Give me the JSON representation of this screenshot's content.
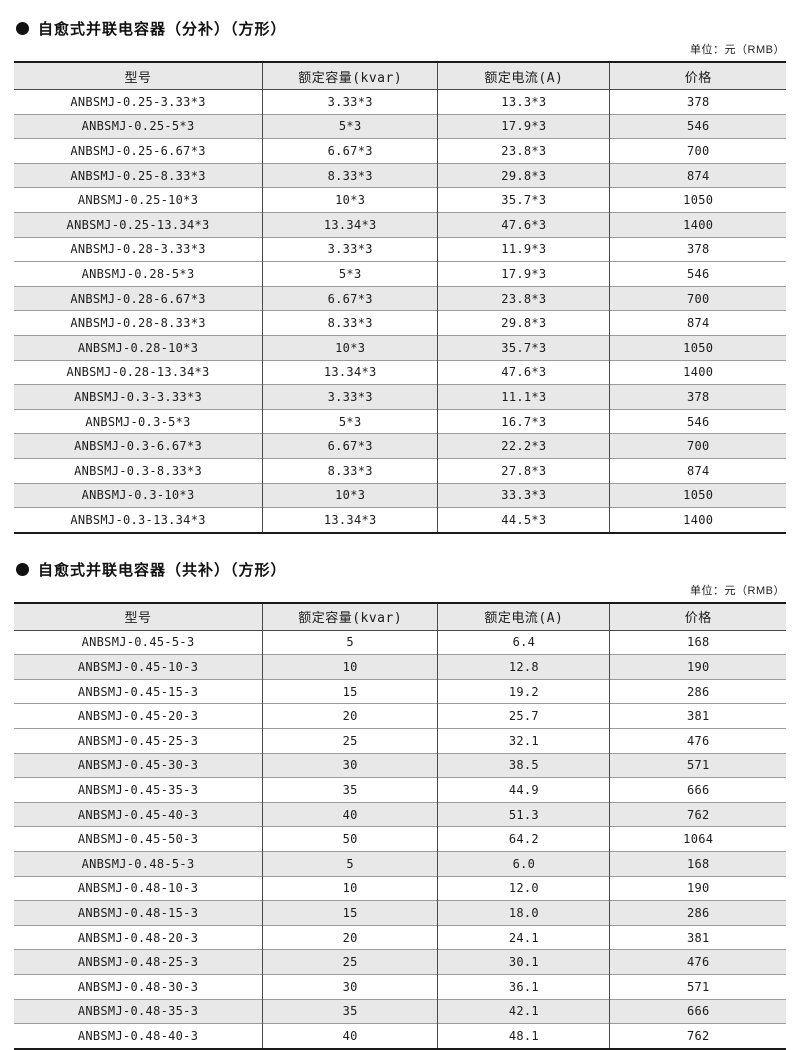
{
  "icons": {
    "bullet": "filled-circle"
  },
  "tables": [
    {
      "title": "自愈式并联电容器（分补）（方形）",
      "unit": "单位：元（RMB）",
      "columns": [
        "型号",
        "额定容量(kvar)",
        "额定电流(A)",
        "价格"
      ],
      "rows": [
        {
          "model": "ANBSMJ-0.25-3.33*3",
          "capacity": "3.33*3",
          "current": "13.3*3",
          "price": "378",
          "shaded": false
        },
        {
          "model": "ANBSMJ-0.25-5*3",
          "capacity": "5*3",
          "current": "17.9*3",
          "price": "546",
          "shaded": true
        },
        {
          "model": "ANBSMJ-0.25-6.67*3",
          "capacity": "6.67*3",
          "current": "23.8*3",
          "price": "700",
          "shaded": false
        },
        {
          "model": "ANBSMJ-0.25-8.33*3",
          "capacity": "8.33*3",
          "current": "29.8*3",
          "price": "874",
          "shaded": true
        },
        {
          "model": "ANBSMJ-0.25-10*3",
          "capacity": "10*3",
          "current": "35.7*3",
          "price": "1050",
          "shaded": false
        },
        {
          "model": "ANBSMJ-0.25-13.34*3",
          "capacity": "13.34*3",
          "current": "47.6*3",
          "price": "1400",
          "shaded": true
        },
        {
          "model": "ANBSMJ-0.28-3.33*3",
          "capacity": "3.33*3",
          "current": "11.9*3",
          "price": "378",
          "shaded": false
        },
        {
          "model": "ANBSMJ-0.28-5*3",
          "capacity": "5*3",
          "current": "17.9*3",
          "price": "546",
          "shaded": false
        },
        {
          "model": "ANBSMJ-0.28-6.67*3",
          "capacity": "6.67*3",
          "current": "23.8*3",
          "price": "700",
          "shaded": true
        },
        {
          "model": "ANBSMJ-0.28-8.33*3",
          "capacity": "8.33*3",
          "current": "29.8*3",
          "price": "874",
          "shaded": false
        },
        {
          "model": "ANBSMJ-0.28-10*3",
          "capacity": "10*3",
          "current": "35.7*3",
          "price": "1050",
          "shaded": true
        },
        {
          "model": "ANBSMJ-0.28-13.34*3",
          "capacity": "13.34*3",
          "current": "47.6*3",
          "price": "1400",
          "shaded": false
        },
        {
          "model": "ANBSMJ-0.3-3.33*3",
          "capacity": "3.33*3",
          "current": "11.1*3",
          "price": "378",
          "shaded": true
        },
        {
          "model": "ANBSMJ-0.3-5*3",
          "capacity": "5*3",
          "current": "16.7*3",
          "price": "546",
          "shaded": false
        },
        {
          "model": "ANBSMJ-0.3-6.67*3",
          "capacity": "6.67*3",
          "current": "22.2*3",
          "price": "700",
          "shaded": true
        },
        {
          "model": "ANBSMJ-0.3-8.33*3",
          "capacity": "8.33*3",
          "current": "27.8*3",
          "price": "874",
          "shaded": false
        },
        {
          "model": "ANBSMJ-0.3-10*3",
          "capacity": "10*3",
          "current": "33.3*3",
          "price": "1050",
          "shaded": true
        },
        {
          "model": "ANBSMJ-0.3-13.34*3",
          "capacity": "13.34*3",
          "current": "44.5*3",
          "price": "1400",
          "shaded": false
        }
      ]
    },
    {
      "title": "自愈式并联电容器（共补）（方形）",
      "unit": "单位：元（RMB）",
      "columns": [
        "型号",
        "额定容量(kvar)",
        "额定电流(A)",
        "价格"
      ],
      "rows": [
        {
          "model": "ANBSMJ-0.45-5-3",
          "capacity": "5",
          "current": "6.4",
          "price": "168",
          "shaded": false
        },
        {
          "model": "ANBSMJ-0.45-10-3",
          "capacity": "10",
          "current": "12.8",
          "price": "190",
          "shaded": true
        },
        {
          "model": "ANBSMJ-0.45-15-3",
          "capacity": "15",
          "current": "19.2",
          "price": "286",
          "shaded": false
        },
        {
          "model": "ANBSMJ-0.45-20-3",
          "capacity": "20",
          "current": "25.7",
          "price": "381",
          "shaded": false
        },
        {
          "model": "ANBSMJ-0.45-25-3",
          "capacity": "25",
          "current": "32.1",
          "price": "476",
          "shaded": false
        },
        {
          "model": "ANBSMJ-0.45-30-3",
          "capacity": "30",
          "current": "38.5",
          "price": "571",
          "shaded": true
        },
        {
          "model": "ANBSMJ-0.45-35-3",
          "capacity": "35",
          "current": "44.9",
          "price": "666",
          "shaded": false
        },
        {
          "model": "ANBSMJ-0.45-40-3",
          "capacity": "40",
          "current": "51.3",
          "price": "762",
          "shaded": true
        },
        {
          "model": "ANBSMJ-0.45-50-3",
          "capacity": "50",
          "current": "64.2",
          "price": "1064",
          "shaded": false
        },
        {
          "model": "ANBSMJ-0.48-5-3",
          "capacity": "5",
          "current": "6.0",
          "price": "168",
          "shaded": true
        },
        {
          "model": "ANBSMJ-0.48-10-3",
          "capacity": "10",
          "current": "12.0",
          "price": "190",
          "shaded": false
        },
        {
          "model": "ANBSMJ-0.48-15-3",
          "capacity": "15",
          "current": "18.0",
          "price": "286",
          "shaded": true
        },
        {
          "model": "ANBSMJ-0.48-20-3",
          "capacity": "20",
          "current": "24.1",
          "price": "381",
          "shaded": false
        },
        {
          "model": "ANBSMJ-0.48-25-3",
          "capacity": "25",
          "current": "30.1",
          "price": "476",
          "shaded": true
        },
        {
          "model": "ANBSMJ-0.48-30-3",
          "capacity": "30",
          "current": "36.1",
          "price": "571",
          "shaded": false
        },
        {
          "model": "ANBSMJ-0.48-35-3",
          "capacity": "35",
          "current": "42.1",
          "price": "666",
          "shaded": true
        },
        {
          "model": "ANBSMJ-0.48-40-3",
          "capacity": "40",
          "current": "48.1",
          "price": "762",
          "shaded": false
        }
      ]
    }
  ]
}
